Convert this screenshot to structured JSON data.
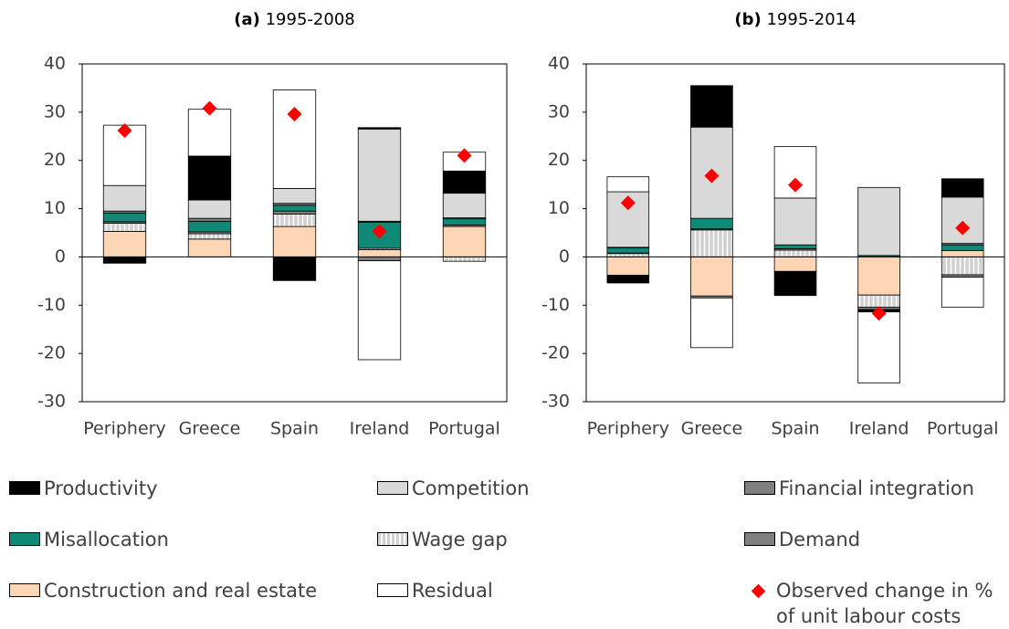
{
  "chart_data": [
    {
      "type": "bar",
      "stacked": true,
      "panel": "(a)",
      "title": "1995-2008",
      "categories": [
        "Periphery",
        "Greece",
        "Spain",
        "Ireland",
        "Portugal"
      ],
      "ylim": [
        -30,
        40
      ],
      "yticks": [
        -30,
        -20,
        -10,
        0,
        10,
        20,
        30,
        40
      ],
      "series": [
        {
          "name": "Productivity",
          "color": "#000000",
          "values": [
            -1.3,
            9.1,
            -4.9,
            0.3,
            4.6
          ]
        },
        {
          "name": "Competition",
          "color": "#d9d9d9",
          "values": [
            5.3,
            3.8,
            3.1,
            19.1,
            5.1
          ]
        },
        {
          "name": "Financial integration",
          "color": "#7f7f7f",
          "values": [
            0.4,
            0.6,
            0.4,
            0.2,
            0.2
          ]
        },
        {
          "name": "Misallocation",
          "color": "#0f8a76",
          "values": [
            1.8,
            2.2,
            1.2,
            5.4,
            1.3
          ]
        },
        {
          "name": "Wage gap",
          "color": "#d0d0d0",
          "pattern": "vertical-stripes",
          "values": [
            1.7,
            1.1,
            2.6,
            0.3,
            -0.9
          ]
        },
        {
          "name": "Demand",
          "color": "#7f7f7f",
          "values": [
            0.3,
            0.4,
            0.6,
            -0.8,
            0.3
          ]
        },
        {
          "name": "Construction and real estate",
          "color": "#fcd5b5",
          "values": [
            5.3,
            3.7,
            6.3,
            1.5,
            6.3
          ]
        },
        {
          "name": "Residual",
          "color": "#ffffff",
          "values": [
            12.5,
            9.7,
            20.4,
            -20.5,
            3.9
          ]
        }
      ],
      "markers": {
        "name": "Observed change in % of unit labour costs",
        "color": "#ff0000",
        "values": [
          26.2,
          30.8,
          29.6,
          5.3,
          21.0
        ]
      }
    },
    {
      "type": "bar",
      "stacked": true,
      "panel": "(b)",
      "title": "1995-2014",
      "categories": [
        "Periphery",
        "Greece",
        "Spain",
        "Ireland",
        "Portugal"
      ],
      "ylim": [
        -30,
        40
      ],
      "yticks": [
        -30,
        -20,
        -10,
        0,
        10,
        20,
        30,
        40
      ],
      "series": [
        {
          "color": "#000000",
          "values": [
            -1.6,
            8.6,
            -5.0,
            -0.5,
            3.8
          ]
        },
        {
          "color": "#d9d9d9",
          "values": [
            11.5,
            18.9,
            9.7,
            14.1,
            9.6
          ]
        },
        {
          "color": "#7f7f7f",
          "values": [
            0.1,
            -0.4,
            0.0,
            0.0,
            0.3
          ]
        },
        {
          "color": "#0f8a76",
          "values": [
            1.1,
            2.2,
            0.8,
            0.3,
            1.2
          ]
        },
        {
          "color": "#d0d0d0",
          "pattern": "vertical-stripes",
          "values": [
            0.7,
            5.6,
            1.4,
            -2.5,
            -3.7
          ]
        },
        {
          "color": "#7f7f7f",
          "values": [
            0.1,
            0.2,
            0.3,
            -0.5,
            -0.5
          ]
        },
        {
          "color": "#fcd5b5",
          "values": [
            -3.8,
            -8.1,
            -3.0,
            -7.9,
            1.3
          ]
        },
        {
          "color": "#ffffff",
          "values": [
            3.1,
            -10.3,
            10.7,
            -14.7,
            -6.2
          ]
        }
      ],
      "markers": {
        "color": "#ff0000",
        "values": [
          11.2,
          16.8,
          14.9,
          -11.7,
          6.0
        ]
      }
    }
  ]
}
